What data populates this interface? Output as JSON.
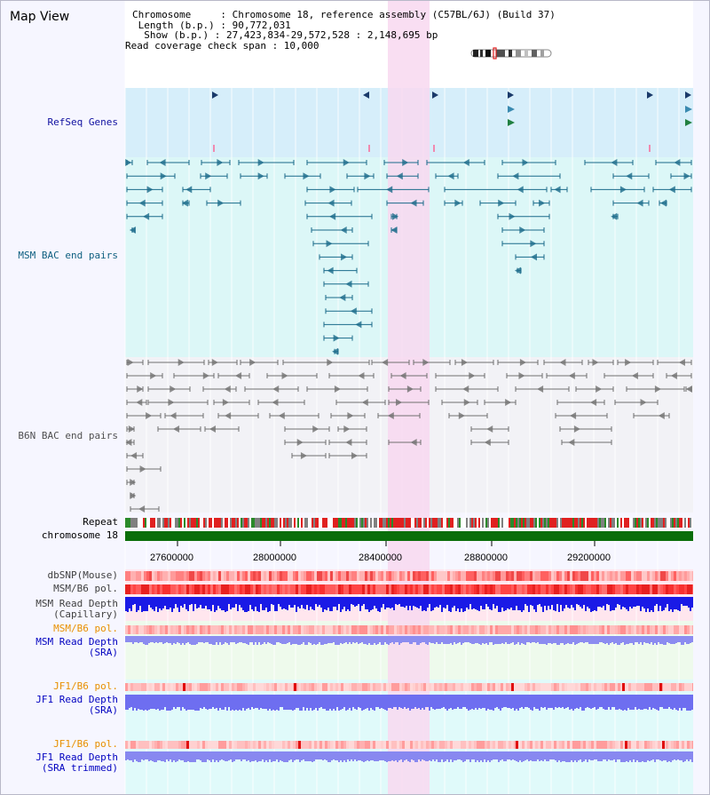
{
  "title": "Map View",
  "info": {
    "chrom_line": "Chromosome     : Chromosome 18, reference assembly (C57BL/6J) (Build 37)",
    "length_line": " Length (b.p.) : 90,772,031",
    "show_line": "  Show (b.p.) : 27,423,834-29,572,528 : 2,148,695 bp",
    "span_line": "Read coverage check span : 10,000"
  },
  "tracks": {
    "refseq": "RefSeq Genes",
    "msm_bac": "MSM BAC end pairs",
    "b6n_bac": "B6N BAC end pairs",
    "repeat": "Repeat",
    "chromosome": "chromosome 18",
    "dbsnp": "dbSNP(Mouse)",
    "msm_b6_pol_1": "MSM/B6 pol.",
    "msm_depth_cap": "MSM Read Depth\n(Capillary)",
    "msm_b6_pol_2": "MSM/B6 pol.",
    "msm_depth_sra": "MSM Read Depth\n(SRA)",
    "jf1_b6_pol_1": "JF1/B6 pol.",
    "jf1_depth_sra": "JF1 Read Depth\n(SRA)",
    "jf1_b6_pol_2": "JF1/B6 pol.",
    "jf1_depth_trim": "JF1 Read Depth\n(SRA trimmed)"
  },
  "axis_ticks": [
    "27600000",
    "28000000",
    "28400000",
    "28800000",
    "29200000"
  ],
  "colors": {
    "refseq_bg": "#d6eefa",
    "refseq_label": "#1010a0",
    "msm_label": "#106080",
    "b6n_label": "#505050",
    "orange_label": "#e89000",
    "blue_label": "#0000c0",
    "highlight": "#f8d8f0",
    "chrom_green": "#0a6e0a",
    "depth_blue": "#1a1ae6",
    "sra_blue": "#8c8cf0",
    "jf1_blue": "#6e6ef0"
  }
}
